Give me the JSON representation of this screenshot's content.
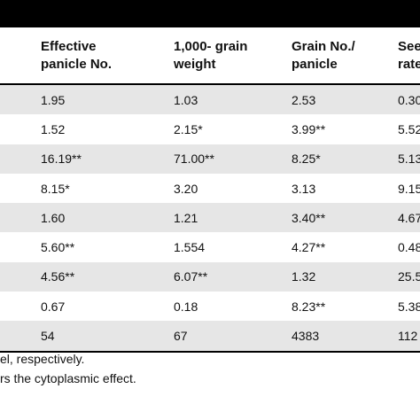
{
  "table": {
    "headers": [
      "",
      "Effective\npanicle No.",
      "1,000- grain\nweight",
      "Grain No./\npanicle",
      "See\nrate"
    ],
    "rows": [
      [
        "",
        "1.95",
        "1.03",
        "2.53",
        "0.30"
      ],
      [
        "",
        "1.52",
        "2.15*",
        "3.99**",
        "5.52"
      ],
      [
        "",
        "16.19**",
        "71.00**",
        "8.25*",
        "5.13"
      ],
      [
        "",
        "8.15*",
        "3.20",
        "3.13",
        "9.15"
      ],
      [
        "",
        "1.60",
        "1.21",
        "3.40**",
        "4.67"
      ],
      [
        "",
        "5.60**",
        "1.554",
        "4.27**",
        "0.48"
      ],
      [
        "",
        "4.56**",
        "6.07**",
        "1.32",
        "25.5"
      ],
      [
        "",
        "0.67",
        "0.18",
        "8.23**",
        "5.38"
      ],
      [
        "",
        "54",
        "67",
        "4383",
        "112"
      ]
    ]
  },
  "footnotes": [
    "el, respectively.",
    "rs the cytoplasmic effect."
  ]
}
